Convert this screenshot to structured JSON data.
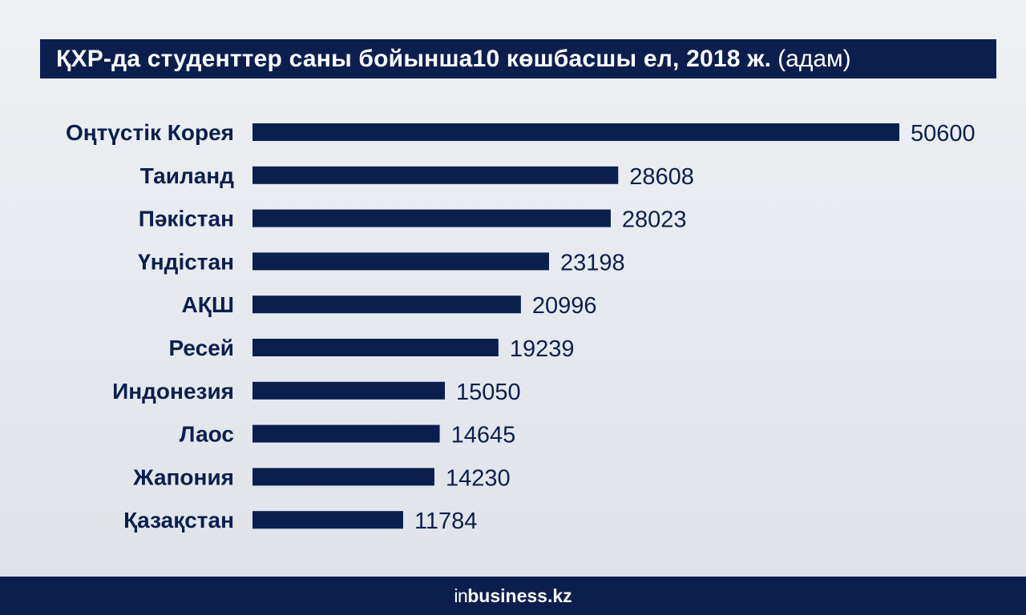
{
  "header": {
    "title": "ҚХР-да студенттер саны бойынша10 көшбасшы ел, 2018 ж.",
    "unit": "(адам)"
  },
  "chart_data": {
    "type": "bar",
    "orientation": "horizontal",
    "title": "ҚХР-да студенттер саны бойынша10 көшбасшы ел, 2018 ж. (адам)",
    "categories": [
      "Оңтүстік Корея",
      "Таиланд",
      "Пәкістан",
      "Үндістан",
      "АҚШ",
      "Ресей",
      "Индонезия",
      "Лаос",
      "Жапония",
      "Қазақстан"
    ],
    "values": [
      50600,
      28608,
      28023,
      23198,
      20996,
      19239,
      15050,
      14645,
      14230,
      11784
    ],
    "xlim": [
      0,
      50600
    ],
    "grid": false,
    "legend": "none"
  },
  "footer": {
    "brand_prefix": "in",
    "brand_name": "business.kz"
  },
  "colors": {
    "navy": "#0b1f4f",
    "background": "#e8ebef"
  }
}
